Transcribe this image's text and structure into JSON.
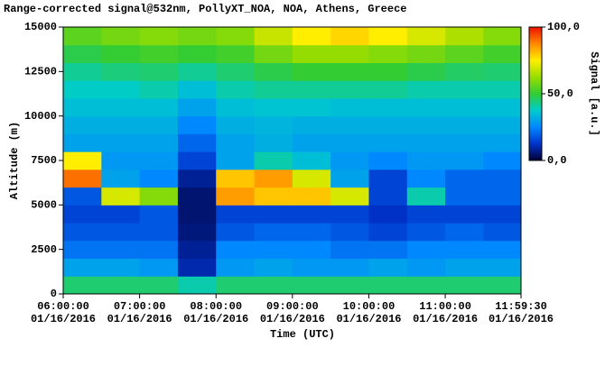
{
  "chart_data": {
    "type": "heatmap",
    "title": "Range-corrected signal@532nm, PollyXT_NOA, NOA, Athens, Greece",
    "xlabel": "Time (UTC)",
    "ylabel": "Altitude (m)",
    "colorbar_label": "Signal [a.u.]",
    "xlim": [
      6,
      11.99167
    ],
    "ylim": [
      0,
      15000
    ],
    "xticks": [
      {
        "value": 6,
        "label": "06:00:00\n01/16/2016"
      },
      {
        "value": 7,
        "label": "07:00:00\n01/16/2016"
      },
      {
        "value": 8,
        "label": "08:00:00\n01/16/2016"
      },
      {
        "value": 9,
        "label": "09:00:00\n01/16/2016"
      },
      {
        "value": 10,
        "label": "10:00:00\n01/16/2016"
      },
      {
        "value": 11,
        "label": "11:00:00\n01/16/2016"
      },
      {
        "value": 11.99167,
        "label": "11:59:30\n01/16/2016"
      }
    ],
    "yticks": [
      0,
      2500,
      5000,
      7500,
      10000,
      12500,
      15000
    ],
    "clim": [
      0,
      100
    ],
    "cticks": [
      {
        "value": 0,
        "label": "0,0"
      },
      {
        "value": 50,
        "label": "50,0"
      },
      {
        "value": 100,
        "label": "100,0"
      }
    ],
    "colormap": [
      "#000033",
      "#0033cc",
      "#0088ff",
      "#00cccc",
      "#33cc33",
      "#99dd00",
      "#ffee00",
      "#ff8800",
      "#ee1100"
    ],
    "xbins": [
      6,
      6.5,
      7,
      7.5,
      8,
      8.5,
      9,
      9.5,
      10,
      10.5,
      11,
      11.5,
      11.99167
    ],
    "ybins": [
      0,
      1000,
      2000,
      3000,
      4000,
      5000,
      6000,
      7000,
      8000,
      9000,
      10000,
      11000,
      12000,
      13000,
      14000,
      15000
    ],
    "z": [
      [
        45,
        45,
        45,
        40,
        45,
        45,
        45,
        45,
        45,
        45,
        45,
        45
      ],
      [
        30,
        30,
        28,
        10,
        28,
        30,
        28,
        28,
        30,
        28,
        30,
        30
      ],
      [
        22,
        22,
        22,
        8,
        25,
        25,
        25,
        22,
        22,
        25,
        25,
        25
      ],
      [
        18,
        18,
        18,
        6,
        18,
        20,
        20,
        18,
        15,
        18,
        20,
        18
      ],
      [
        15,
        15,
        18,
        5,
        15,
        15,
        15,
        15,
        12,
        15,
        15,
        15
      ],
      [
        18,
        70,
        60,
        5,
        85,
        80,
        80,
        70,
        15,
        40,
        20,
        20
      ],
      [
        90,
        30,
        25,
        8,
        80,
        85,
        70,
        30,
        15,
        25,
        20,
        20
      ],
      [
        75,
        28,
        28,
        15,
        30,
        40,
        35,
        28,
        25,
        28,
        28,
        25
      ],
      [
        30,
        30,
        30,
        20,
        30,
        32,
        30,
        30,
        30,
        30,
        30,
        30
      ],
      [
        32,
        32,
        32,
        25,
        32,
        33,
        32,
        32,
        32,
        32,
        32,
        32
      ],
      [
        35,
        35,
        35,
        30,
        35,
        36,
        36,
        35,
        35,
        35,
        35,
        35
      ],
      [
        38,
        38,
        40,
        35,
        40,
        42,
        42,
        42,
        42,
        40,
        40,
        40
      ],
      [
        42,
        44,
        45,
        42,
        45,
        48,
        50,
        50,
        50,
        48,
        46,
        45
      ],
      [
        48,
        50,
        52,
        50,
        52,
        58,
        62,
        62,
        60,
        58,
        55,
        52
      ],
      [
        55,
        58,
        60,
        58,
        60,
        68,
        75,
        78,
        75,
        70,
        65,
        60
      ]
    ]
  }
}
